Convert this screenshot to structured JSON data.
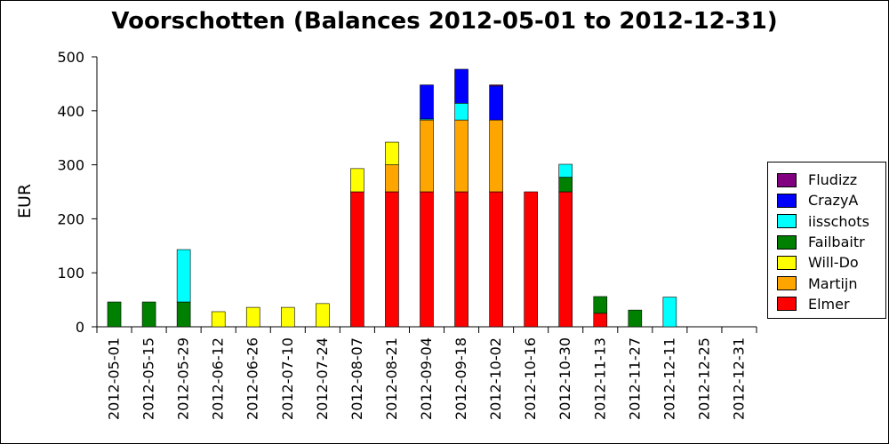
{
  "chart_data": {
    "type": "bar",
    "stacked": true,
    "title": "Voorschotten (Balances 2012-05-01 to 2012-12-31)",
    "ylabel": "EUR",
    "xlabel": "",
    "ylim": [
      0,
      500
    ],
    "yticks": [
      0,
      100,
      200,
      300,
      400,
      500
    ],
    "legend_position": "right",
    "categories": [
      "2012-05-01",
      "2012-05-15",
      "2012-05-29",
      "2012-06-12",
      "2012-06-26",
      "2012-07-10",
      "2012-07-24",
      "2012-08-07",
      "2012-08-21",
      "2012-09-04",
      "2012-09-18",
      "2012-10-02",
      "2012-10-16",
      "2012-10-30",
      "2012-11-13",
      "2012-11-27",
      "2012-12-11",
      "2012-12-25",
      "2012-12-31"
    ],
    "series": [
      {
        "name": "Elmer",
        "color": "#ff0000",
        "values": [
          0,
          0,
          0,
          0,
          0,
          0,
          0,
          250,
          250,
          250,
          250,
          250,
          250,
          250,
          25,
          0,
          0,
          0,
          0
        ]
      },
      {
        "name": "Martijn",
        "color": "#ffa500",
        "values": [
          0,
          0,
          0,
          0,
          0,
          0,
          0,
          0,
          50,
          133,
          133,
          133,
          0,
          0,
          0,
          0,
          0,
          0,
          0
        ]
      },
      {
        "name": "Will-Do",
        "color": "#ffff00",
        "values": [
          0,
          0,
          0,
          28,
          36,
          36,
          43,
          43,
          42,
          0,
          0,
          0,
          0,
          0,
          0,
          0,
          0,
          0,
          0
        ]
      },
      {
        "name": "Failbaitr",
        "color": "#008000",
        "values": [
          46,
          46,
          46,
          0,
          0,
          0,
          0,
          0,
          0,
          0,
          0,
          0,
          0,
          27,
          31,
          31,
          0,
          0,
          0
        ]
      },
      {
        "name": "iisschots",
        "color": "#00ffff",
        "values": [
          0,
          0,
          97,
          0,
          0,
          0,
          0,
          0,
          0,
          2,
          31,
          0,
          0,
          24,
          0,
          0,
          55,
          0,
          0
        ]
      },
      {
        "name": "CrazyA",
        "color": "#0000ff",
        "values": [
          0,
          0,
          0,
          0,
          0,
          0,
          0,
          0,
          0,
          63,
          63,
          63,
          0,
          0,
          0,
          0,
          0,
          0,
          0
        ]
      },
      {
        "name": "Fludizz",
        "color": "#800080",
        "values": [
          0,
          0,
          0,
          0,
          0,
          0,
          0,
          0,
          0,
          0,
          0,
          2,
          0,
          0,
          0,
          0,
          0,
          0,
          0
        ]
      }
    ],
    "legend_order": [
      "Fludizz",
      "CrazyA",
      "iisschots",
      "Failbaitr",
      "Will-Do",
      "Martijn",
      "Elmer"
    ]
  }
}
